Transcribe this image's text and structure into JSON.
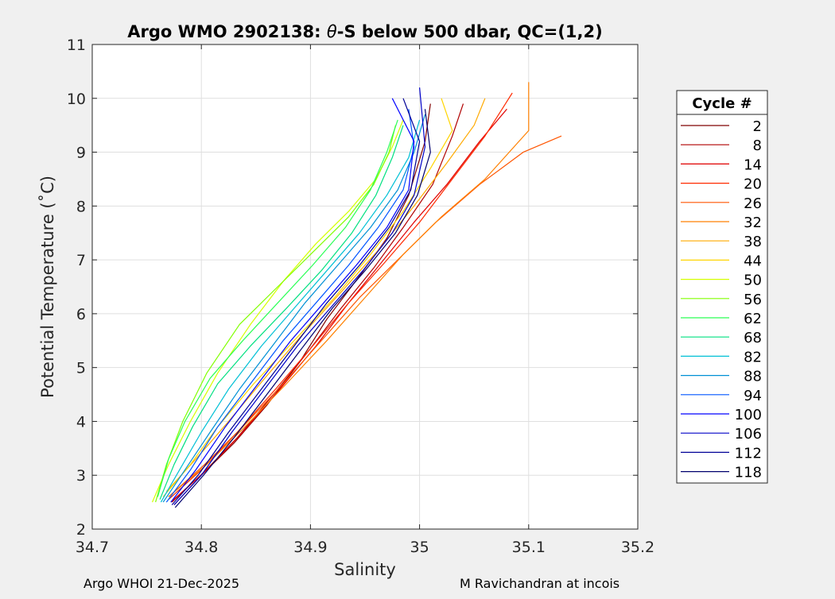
{
  "chart_data": {
    "type": "line",
    "title_prefix": "Argo WMO 2902138: ",
    "title_theta": "θ",
    "title_suffix": "-S below 500 dbar,  QC=(1,2)",
    "xlabel": "Salinity",
    "ylabel": "Potential Temperature (˚C)",
    "xlim": [
      34.7,
      35.2
    ],
    "ylim": [
      2,
      11
    ],
    "xticks": [
      34.7,
      34.8,
      34.9,
      35,
      35.1,
      35.2
    ],
    "xtick_labels": [
      "34.7",
      "34.8",
      "34.9",
      "35",
      "35.1",
      "35.2"
    ],
    "yticks": [
      2,
      3,
      4,
      5,
      6,
      7,
      8,
      9,
      10,
      11
    ],
    "ytick_labels": [
      "2",
      "3",
      "4",
      "5",
      "6",
      "7",
      "8",
      "9",
      "10",
      "11"
    ],
    "grid": true,
    "legend_title": "Cycle #",
    "legend_position": "outside-right",
    "series": [
      {
        "name": "2",
        "color": "#800000",
        "x": [
          34.775,
          34.8,
          34.83,
          34.86,
          34.89,
          34.915,
          34.945,
          34.97,
          34.99,
          35.005,
          35.01
        ],
        "y": [
          2.45,
          3.0,
          3.6,
          4.3,
          5.1,
          5.9,
          6.7,
          7.4,
          8.2,
          9.2,
          9.9
        ]
      },
      {
        "name": "8",
        "color": "#b00000",
        "x": [
          34.773,
          34.802,
          34.833,
          34.866,
          34.898,
          34.928,
          34.958,
          34.985,
          35.012,
          35.03,
          35.04
        ],
        "y": [
          2.5,
          3.05,
          3.7,
          4.5,
          5.3,
          6.1,
          6.85,
          7.6,
          8.4,
          9.3,
          9.9
        ]
      },
      {
        "name": "14",
        "color": "#e00000",
        "x": [
          34.772,
          34.805,
          34.838,
          34.872,
          34.905,
          34.935,
          34.965,
          34.995,
          35.025,
          35.055,
          35.08
        ],
        "y": [
          2.5,
          3.1,
          3.8,
          4.6,
          5.4,
          6.2,
          6.95,
          7.7,
          8.4,
          9.2,
          9.8
        ]
      },
      {
        "name": "20",
        "color": "#ff2a00",
        "x": [
          34.77,
          34.8,
          34.833,
          34.868,
          34.902,
          34.935,
          34.968,
          35.0,
          35.03,
          35.06,
          35.085
        ],
        "y": [
          2.55,
          3.1,
          3.8,
          4.6,
          5.4,
          6.2,
          6.95,
          7.7,
          8.5,
          9.3,
          10.1
        ]
      },
      {
        "name": "26",
        "color": "#ff5500",
        "x": [
          34.77,
          34.803,
          34.838,
          34.875,
          34.91,
          34.945,
          34.98,
          35.015,
          35.055,
          35.095,
          35.13
        ],
        "y": [
          2.6,
          3.2,
          3.9,
          4.7,
          5.5,
          6.3,
          7.0,
          7.7,
          8.4,
          9.0,
          9.3
        ]
      },
      {
        "name": "32",
        "color": "#ff8000",
        "x": [
          34.77,
          34.805,
          34.84,
          34.878,
          34.915,
          34.95,
          34.985,
          35.02,
          35.06,
          35.1,
          35.1
        ],
        "y": [
          2.6,
          3.2,
          3.9,
          4.7,
          5.5,
          6.3,
          7.1,
          7.8,
          8.5,
          9.4,
          10.3
        ]
      },
      {
        "name": "38",
        "color": "#ffaa00",
        "x": [
          34.768,
          34.795,
          34.825,
          34.858,
          34.892,
          34.928,
          34.963,
          34.995,
          35.025,
          35.05,
          35.06
        ],
        "y": [
          2.7,
          3.3,
          4.0,
          4.8,
          5.6,
          6.4,
          7.2,
          8.0,
          8.8,
          9.5,
          10.0
        ]
      },
      {
        "name": "44",
        "color": "#ffd500",
        "x": [
          34.765,
          34.79,
          34.815,
          34.848,
          34.885,
          34.922,
          34.955,
          34.985,
          35.01,
          35.03,
          35.02
        ],
        "y": [
          2.6,
          3.2,
          3.9,
          4.7,
          5.5,
          6.3,
          7.1,
          7.9,
          8.7,
          9.4,
          10.0
        ]
      },
      {
        "name": "50",
        "color": "#d5ff00",
        "x": [
          34.755,
          34.77,
          34.79,
          34.815,
          34.845,
          34.875,
          34.905,
          34.935,
          34.96,
          34.975,
          34.985
        ],
        "y": [
          2.5,
          3.2,
          4.0,
          4.9,
          5.8,
          6.6,
          7.3,
          7.9,
          8.5,
          9.1,
          9.6
        ]
      },
      {
        "name": "56",
        "color": "#80ff00",
        "x": [
          34.758,
          34.768,
          34.783,
          34.805,
          34.835,
          34.87,
          34.905,
          34.935,
          34.958,
          34.972,
          34.978
        ],
        "y": [
          2.5,
          3.2,
          4.0,
          4.9,
          5.8,
          6.5,
          7.2,
          7.8,
          8.4,
          9.0,
          9.5
        ]
      },
      {
        "name": "62",
        "color": "#2aff55",
        "x": [
          34.76,
          34.77,
          34.785,
          34.808,
          34.838,
          34.87,
          34.902,
          34.932,
          34.955,
          34.97,
          34.98
        ],
        "y": [
          2.6,
          3.3,
          4.0,
          4.8,
          5.5,
          6.2,
          6.9,
          7.6,
          8.3,
          9.0,
          9.6
        ]
      },
      {
        "name": "68",
        "color": "#00e080",
        "x": [
          34.762,
          34.775,
          34.792,
          34.815,
          34.845,
          34.878,
          34.91,
          34.938,
          34.96,
          34.975,
          34.985
        ],
        "y": [
          2.55,
          3.2,
          3.9,
          4.7,
          5.4,
          6.1,
          6.8,
          7.5,
          8.2,
          8.9,
          9.5
        ]
      },
      {
        "name": "82",
        "color": "#00c0d5",
        "x": [
          34.763,
          34.78,
          34.8,
          34.825,
          34.855,
          34.885,
          34.915,
          34.945,
          34.97,
          34.99,
          35.0
        ],
        "y": [
          2.5,
          3.1,
          3.8,
          4.6,
          5.4,
          6.1,
          6.8,
          7.5,
          8.2,
          8.9,
          9.6
        ]
      },
      {
        "name": "88",
        "color": "#0090d5",
        "x": [
          34.765,
          34.785,
          34.808,
          34.835,
          34.865,
          34.895,
          34.925,
          34.955,
          34.98,
          34.995,
          35.005
        ],
        "y": [
          2.5,
          3.1,
          3.8,
          4.6,
          5.4,
          6.2,
          6.9,
          7.6,
          8.3,
          9.0,
          9.7
        ]
      },
      {
        "name": "94",
        "color": "#0055ff",
        "x": [
          34.768,
          34.79,
          34.815,
          34.845,
          34.875,
          34.905,
          34.935,
          34.962,
          34.985,
          34.995,
          34.99
        ],
        "y": [
          2.5,
          3.1,
          3.9,
          4.7,
          5.5,
          6.2,
          6.9,
          7.6,
          8.3,
          9.1,
          9.8
        ]
      },
      {
        "name": "100",
        "color": "#0000ff",
        "x": [
          34.772,
          34.795,
          34.822,
          34.852,
          34.882,
          34.912,
          34.942,
          34.97,
          34.99,
          34.995,
          34.975
        ],
        "y": [
          2.5,
          3.1,
          3.9,
          4.7,
          5.5,
          6.2,
          6.9,
          7.6,
          8.3,
          9.2,
          10.0
        ]
      },
      {
        "name": "106",
        "color": "#0000c8",
        "x": [
          34.775,
          34.8,
          34.828,
          34.858,
          34.888,
          34.918,
          34.948,
          34.975,
          34.995,
          35.005,
          35.0
        ],
        "y": [
          2.45,
          3.0,
          3.8,
          4.6,
          5.4,
          6.1,
          6.8,
          7.5,
          8.2,
          9.1,
          10.2
        ]
      },
      {
        "name": "112",
        "color": "#000096",
        "x": [
          34.773,
          34.797,
          34.825,
          34.855,
          34.885,
          34.915,
          34.945,
          34.972,
          34.992,
          35.0,
          34.985
        ],
        "y": [
          2.45,
          3.0,
          3.8,
          4.6,
          5.4,
          6.2,
          6.9,
          7.6,
          8.3,
          9.2,
          10.0
        ]
      },
      {
        "name": "118",
        "color": "#00006e",
        "x": [
          34.776,
          34.802,
          34.83,
          34.86,
          34.89,
          34.92,
          34.95,
          34.978,
          34.998,
          35.01,
          35.005
        ],
        "y": [
          2.4,
          3.0,
          3.7,
          4.5,
          5.3,
          6.1,
          6.8,
          7.5,
          8.2,
          9.0,
          9.8
        ]
      }
    ]
  },
  "footer": {
    "left": "Argo WHOI 21-Dec-2025",
    "right": "M Ravichandran at incois"
  }
}
